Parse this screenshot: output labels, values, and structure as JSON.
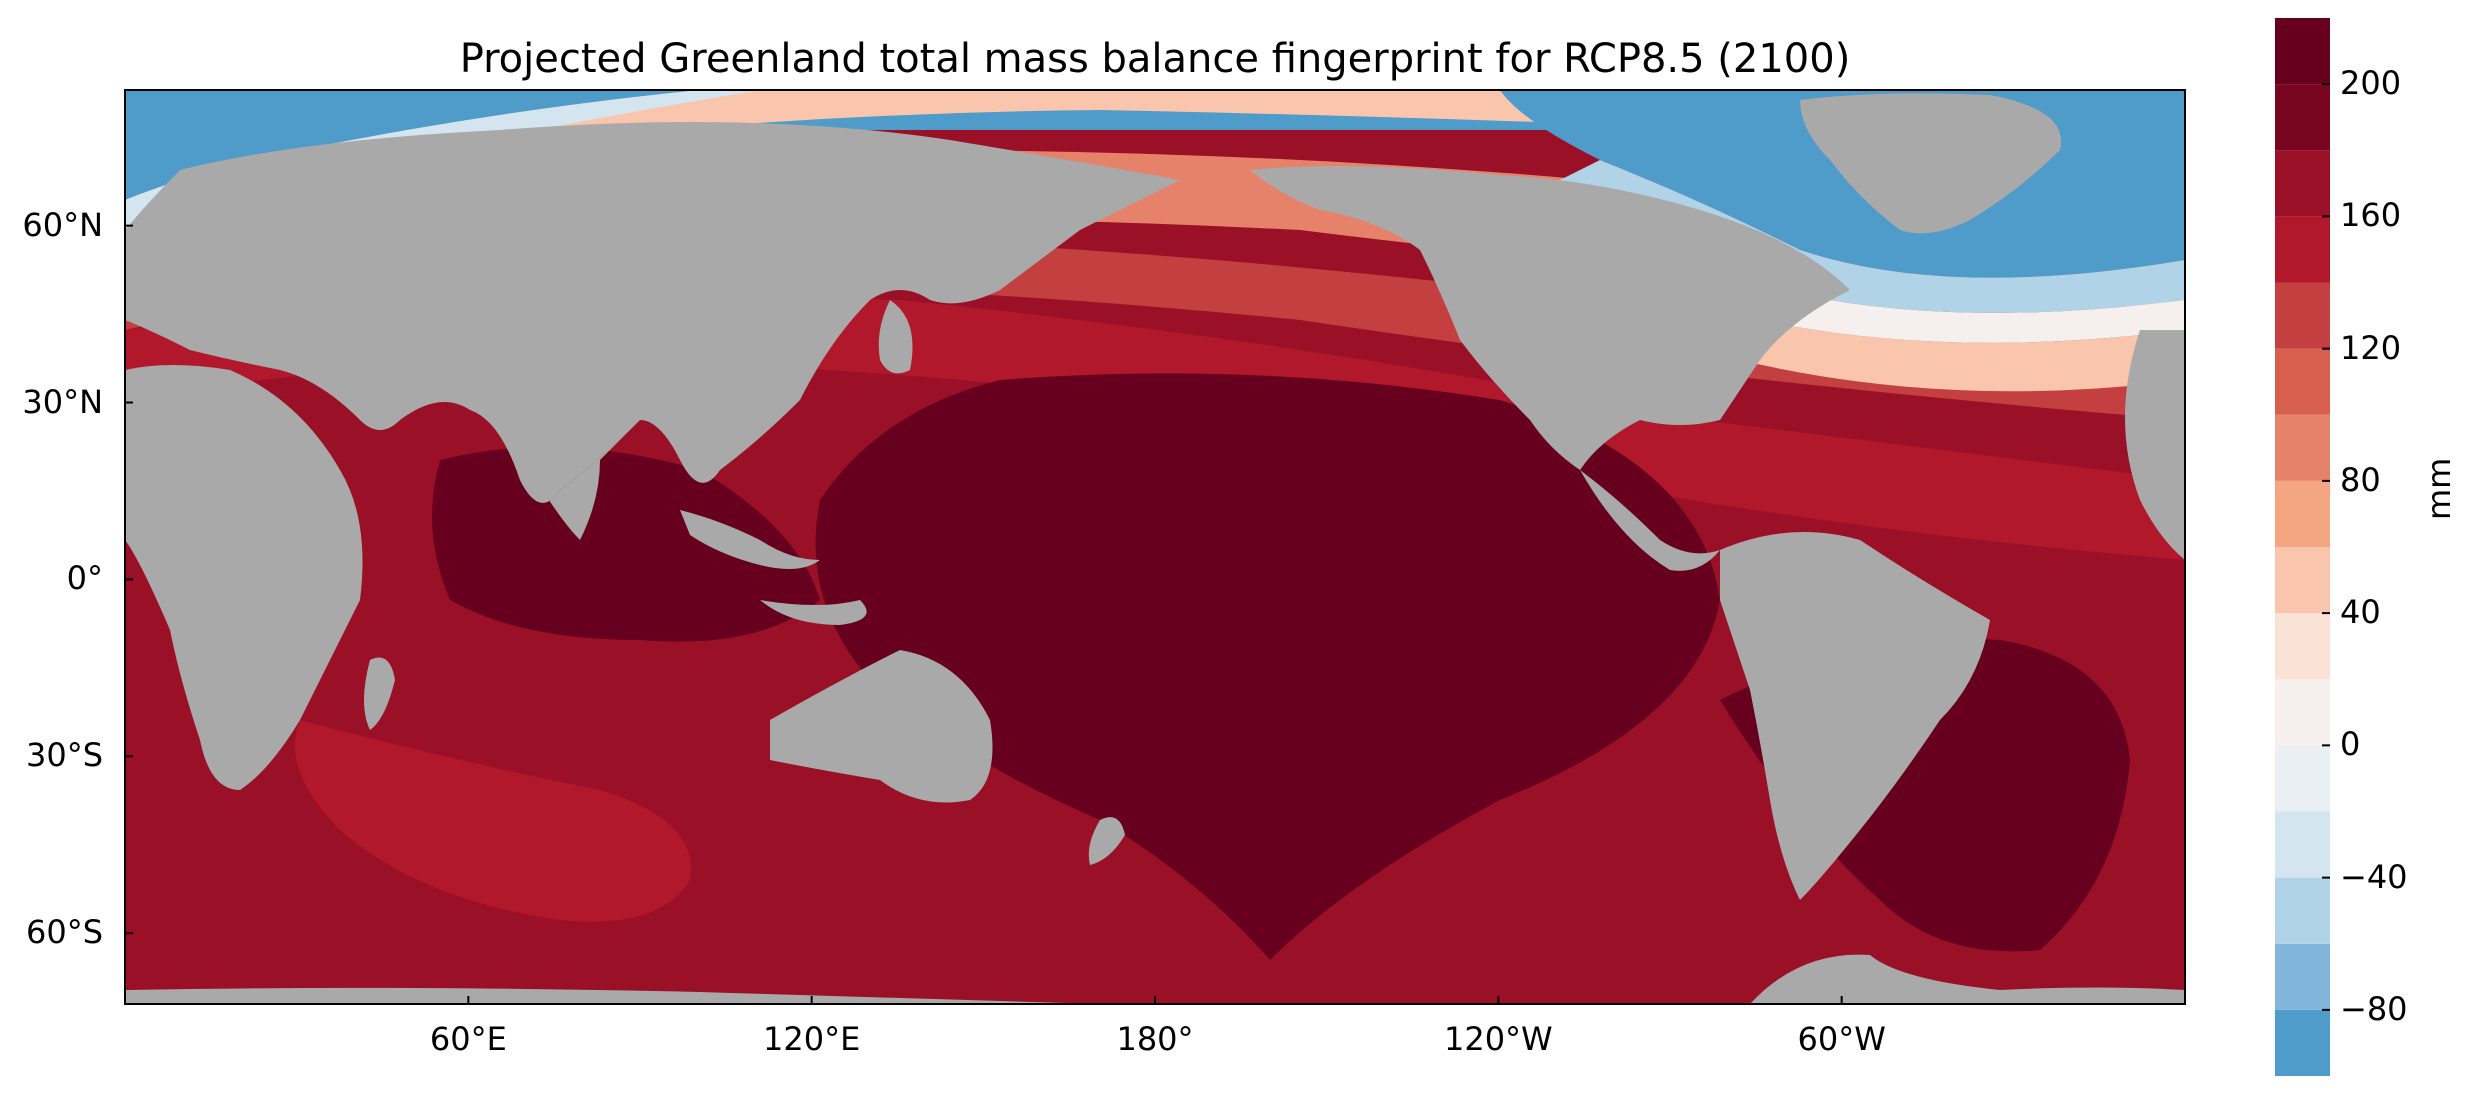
{
  "title": "Projected Greenland total mass balance fingerprint for RCP8.5 (2100)",
  "map": {
    "projection": "PlateCarree, central longitude ~180",
    "land_color": "#a9a9a9",
    "lat_ticks": [
      {
        "label": "60°N",
        "lat": 60
      },
      {
        "label": "30°N",
        "lat": 30
      },
      {
        "label": "0°",
        "lat": 0
      },
      {
        "label": "30°S",
        "lat": -30
      },
      {
        "label": "60°S",
        "lat": -60
      }
    ],
    "lon_ticks": [
      {
        "label": "60°E",
        "lon": 60
      },
      {
        "label": "120°E",
        "lon": 120
      },
      {
        "label": "180°",
        "lon": 180
      },
      {
        "label": "120°W",
        "lon": 240
      },
      {
        "label": "60°W",
        "lon": 300
      }
    ],
    "field_summary": "Sea-level fingerprint: strongly negative near Greenland and the high North Atlantic/Arctic; values rise with distance, reaching >200 mm over the central Pacific, Indian Ocean and South Atlantic."
  },
  "colorbar": {
    "unit": "mm",
    "levels": [
      -100,
      -80,
      -60,
      -40,
      -20,
      0,
      20,
      40,
      60,
      80,
      100,
      120,
      140,
      160,
      180,
      200,
      220
    ],
    "colors": [
      "#4f9bc9",
      "#81b6da",
      "#b0d3e8",
      "#d4e5f0",
      "#e9eff2",
      "#f5f0ed",
      "#fbe2d6",
      "#f9c6ad",
      "#f4a582",
      "#e7826a",
      "#d6604d",
      "#c43f3f",
      "#b2182b",
      "#9a1026",
      "#7a0520",
      "#67001f"
    ],
    "tick_labels": [
      {
        "text": "200",
        "value": 200
      },
      {
        "text": "160",
        "value": 160
      },
      {
        "text": "120",
        "value": 120
      },
      {
        "text": "80",
        "value": 80
      },
      {
        "text": "40",
        "value": 40
      },
      {
        "text": "0",
        "value": 0
      },
      {
        "text": "−40",
        "value": -40
      },
      {
        "text": "−80",
        "value": -80
      }
    ]
  }
}
